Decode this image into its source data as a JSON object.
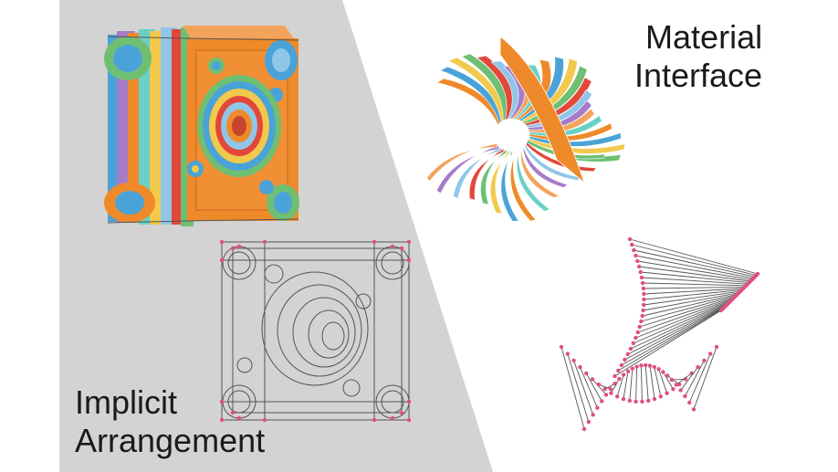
{
  "labels": {
    "implicit_arrangement": {
      "line1": "Implicit",
      "line2": "Arrangement"
    },
    "material_interface": {
      "line1": "Material",
      "line2": "Interface"
    }
  },
  "colors": {
    "left_background": "#d3d3d3",
    "right_background": "#ffffff",
    "wire_gray": "#555555",
    "vertex_pink": "#e0507a",
    "surface_palette": [
      "#ef8a2a",
      "#4aa3d8",
      "#f2c94c",
      "#6fbf73",
      "#e2473a",
      "#8fc6e8",
      "#a67cc9",
      "#f4a35c",
      "#6ad0c6"
    ]
  },
  "icons": [
    "implicit-arrangement-render",
    "implicit-arrangement-wireframe",
    "material-interface-render",
    "material-interface-wireframe"
  ]
}
